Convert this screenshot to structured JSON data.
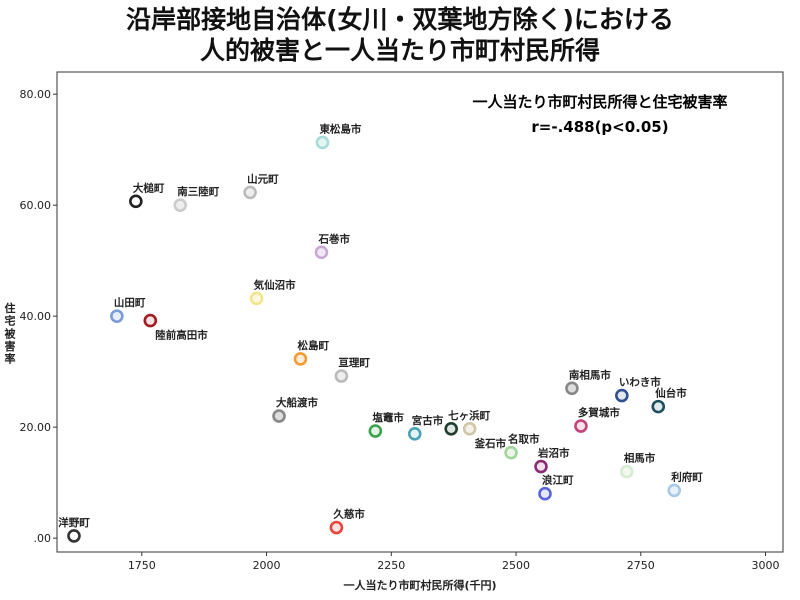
{
  "chart_data": {
    "type": "scatter",
    "title_line1": "沿岸部接地自治体(女川・双葉地方除く)における",
    "title_line2": "人的被害と一人当たり市町村民所得",
    "xlabel": "一人当たり市町村民所得(千円)",
    "ylabel": "住宅被害率",
    "xlim": [
      1580,
      3035
    ],
    "ylim": [
      -2.5,
      84
    ],
    "xticks": [
      1750,
      2000,
      2250,
      2500,
      2750,
      3000
    ],
    "yticks": [
      0,
      20,
      40,
      60,
      80
    ],
    "ytick_labels": [
      ".00",
      "20.00",
      "40.00",
      "60.00",
      "80.00"
    ],
    "annotation_line1": "一人当たり市町村民所得と住宅被害率",
    "annotation_line2": "r=-.488(p<0.05)",
    "grid": false,
    "points": [
      {
        "name": "洋野町",
        "x": 1614,
        "y": 0.4,
        "color": "#333333",
        "fill": "#ffffff",
        "label_pos": "above"
      },
      {
        "name": "大槌町",
        "x": 1738,
        "y": 60.7,
        "color": "#222222",
        "fill": "#ffffff",
        "label_pos": "above-right"
      },
      {
        "name": "南三陸町",
        "x": 1827,
        "y": 60.0,
        "color": "#cccccc",
        "fill": "#eeeeee",
        "label_pos": "above-right"
      },
      {
        "name": "山田町",
        "x": 1700,
        "y": 40.0,
        "color": "#7b9cd6",
        "fill": "#e8eef8",
        "label_pos": "above-right"
      },
      {
        "name": "陸前高田市",
        "x": 1767,
        "y": 39.2,
        "color": "#a11d21",
        "fill": "#f5e3e3",
        "label_pos": "below-right"
      },
      {
        "name": "山元町",
        "x": 1967,
        "y": 62.3,
        "color": "#bbbbbb",
        "fill": "#eeeeee",
        "label_pos": "above-right"
      },
      {
        "name": "気仙沼市",
        "x": 1980,
        "y": 43.2,
        "color": "#f0e58a",
        "fill": "#fbf8e0",
        "label_pos": "above-right"
      },
      {
        "name": "大船渡市",
        "x": 2025,
        "y": 22.0,
        "color": "#888888",
        "fill": "#dddddd",
        "label_pos": "above-right"
      },
      {
        "name": "松島町",
        "x": 2068,
        "y": 32.3,
        "color": "#f39c34",
        "fill": "#fdecd8",
        "label_pos": "above-right"
      },
      {
        "name": "東松島市",
        "x": 2112,
        "y": 71.3,
        "color": "#a8dcd8",
        "fill": "#e6f5f4",
        "label_pos": "above-right"
      },
      {
        "name": "石巻市",
        "x": 2110,
        "y": 51.5,
        "color": "#c9a8d6",
        "fill": "#f1e8f5",
        "label_pos": "above-right"
      },
      {
        "name": "久慈市",
        "x": 2140,
        "y": 1.9,
        "color": "#e8453c",
        "fill": "#fbe3e2",
        "label_pos": "above-right"
      },
      {
        "name": "亘理町",
        "x": 2150,
        "y": 29.2,
        "color": "#bbbbbb",
        "fill": "#eeeeee",
        "label_pos": "above-right"
      },
      {
        "name": "塩竈市",
        "x": 2218,
        "y": 19.3,
        "color": "#3aa351",
        "fill": "#e2f2e5",
        "label_pos": "above-right"
      },
      {
        "name": "宮古市",
        "x": 2297,
        "y": 18.8,
        "color": "#4aa3b5",
        "fill": "#e3f2f5",
        "label_pos": "above-right"
      },
      {
        "name": "七ヶ浜町",
        "x": 2370,
        "y": 19.7,
        "color": "#1f3f2f",
        "fill": "#e0e6e2",
        "label_pos": "above-right"
      },
      {
        "name": "釜石市",
        "x": 2407,
        "y": 19.7,
        "color": "#cfc7a8",
        "fill": "#f4f1e8",
        "label_pos": "below-right"
      },
      {
        "name": "名取市",
        "x": 2490,
        "y": 15.4,
        "color": "#9fd69a",
        "fill": "#ebf6e9",
        "label_pos": "above-right"
      },
      {
        "name": "岩沼市",
        "x": 2550,
        "y": 12.9,
        "color": "#8a2b74",
        "fill": "#f1e1ed",
        "label_pos": "above-right"
      },
      {
        "name": "浪江町",
        "x": 2558,
        "y": 8.0,
        "color": "#5a64d8",
        "fill": "#e6e8f8",
        "label_pos": "above-right"
      },
      {
        "name": "南相馬市",
        "x": 2612,
        "y": 27.0,
        "color": "#888888",
        "fill": "#dddddd",
        "label_pos": "above-right"
      },
      {
        "name": "多賀城市",
        "x": 2630,
        "y": 20.2,
        "color": "#c2447a",
        "fill": "#f6e2ea",
        "label_pos": "above-right"
      },
      {
        "name": "いわき市",
        "x": 2712,
        "y": 25.7,
        "color": "#2f4f8f",
        "fill": "#e2e7f1",
        "label_pos": "above-right"
      },
      {
        "name": "相馬市",
        "x": 2722,
        "y": 12.0,
        "color": "#d6ecd2",
        "fill": "#f2f8f0",
        "label_pos": "above-right"
      },
      {
        "name": "仙台市",
        "x": 2785,
        "y": 23.7,
        "color": "#1f4f5f",
        "fill": "#e0e9eb",
        "label_pos": "above-right"
      },
      {
        "name": "利府町",
        "x": 2817,
        "y": 8.6,
        "color": "#a8c8e8",
        "fill": "#e8f1fa",
        "label_pos": "above-right"
      }
    ]
  }
}
